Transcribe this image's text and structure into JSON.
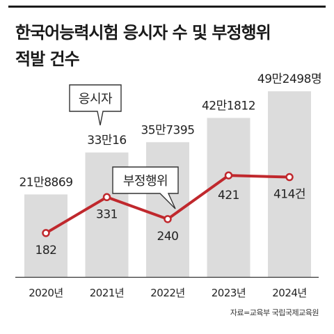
{
  "title": {
    "line1": "한국어능력시험 응시자 수 및 부정행위",
    "line2": "적발 건수"
  },
  "source": "자료=교육부 국립국제교육원",
  "colors": {
    "bar": "#dcdcdc",
    "line": "#c0282d",
    "text": "#222222",
    "callout_border": "#333333",
    "axis": "#333333"
  },
  "chart_data": {
    "type": "bar",
    "categories": [
      "2020년",
      "2021년",
      "2022년",
      "2023년",
      "2024년"
    ],
    "series": [
      {
        "name": "응시자",
        "type": "bar",
        "values": [
          218869,
          330016,
          357395,
          421812,
          492498
        ],
        "labels": [
          "21만8869",
          "33만16",
          "35만7395",
          "42만1812",
          "49만2498명"
        ],
        "ylim": [
          0,
          550000
        ]
      },
      {
        "name": "부정행위",
        "type": "line",
        "values": [
          182,
          331,
          240,
          421,
          414
        ],
        "labels": [
          "182",
          "331",
          "240",
          "421",
          "414건"
        ],
        "ylim": [
          0,
          860
        ]
      }
    ],
    "legend": "callouts"
  }
}
